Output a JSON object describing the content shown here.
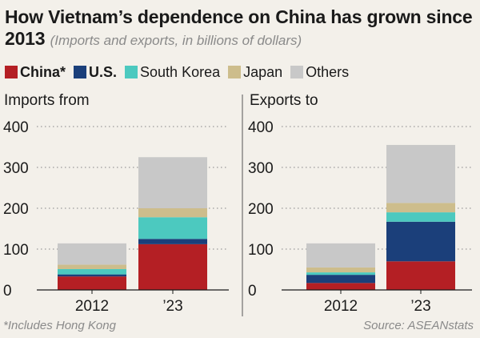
{
  "title": "How Vietnam’s dependence on China has grown since 2013",
  "subtitle": "(Imports and exports, in billions of dollars)",
  "footnote": "*Includes Hong Kong",
  "source": "Source: ASEANstats",
  "colors": {
    "China*": "#b41f24",
    "U.S.": "#1b3f7a",
    "South Korea": "#4cc9bf",
    "Japan": "#cdbd8c",
    "Others": "#c8c8c8",
    "grid": "#9a9a9a",
    "divider": "#555555"
  },
  "legend": [
    {
      "name": "China*",
      "bold": true
    },
    {
      "name": "U.S.",
      "bold": true
    },
    {
      "name": "South Korea",
      "bold": false
    },
    {
      "name": "Japan",
      "bold": false
    },
    {
      "name": "Others",
      "bold": false
    }
  ],
  "chart_data": [
    {
      "type": "bar",
      "stacked": true,
      "panel_title": "Imports from",
      "categories": [
        "2012",
        "’23"
      ],
      "ylim": [
        0,
        400
      ],
      "yticks": [
        0,
        100,
        200,
        300,
        400
      ],
      "grid": true,
      "series": [
        {
          "name": "China*",
          "values": [
            33,
            112
          ]
        },
        {
          "name": "U.S.",
          "values": [
            5,
            13
          ]
        },
        {
          "name": "South Korea",
          "values": [
            13,
            53
          ]
        },
        {
          "name": "Japan",
          "values": [
            11,
            22
          ]
        },
        {
          "name": "Others",
          "values": [
            52,
            125
          ]
        }
      ]
    },
    {
      "type": "bar",
      "stacked": true,
      "panel_title": "Exports to",
      "categories": [
        "2012",
        "’23"
      ],
      "ylim": [
        0,
        400
      ],
      "yticks": [
        0,
        100,
        200,
        300,
        400
      ],
      "grid": true,
      "series": [
        {
          "name": "China*",
          "values": [
            17,
            70
          ]
        },
        {
          "name": "U.S.",
          "values": [
            20,
            97
          ]
        },
        {
          "name": "South Korea",
          "values": [
            6,
            23
          ]
        },
        {
          "name": "Japan",
          "values": [
            12,
            23
          ]
        },
        {
          "name": "Others",
          "values": [
            59,
            142
          ]
        }
      ]
    }
  ]
}
